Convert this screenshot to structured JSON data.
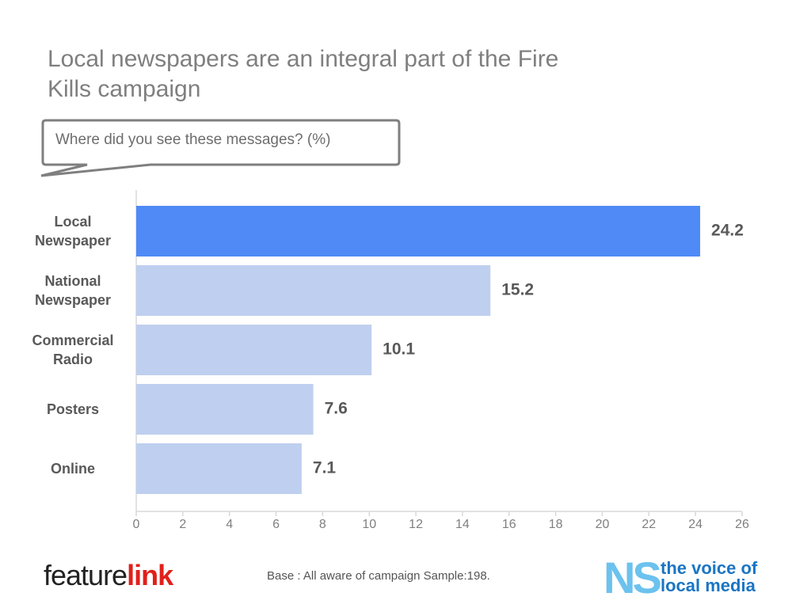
{
  "chart_data": {
    "type": "barh",
    "title": "Local newspapers are an integral part of the Fire Kills campaign",
    "subtitle": "Where did you see these messages? (%)",
    "categories": [
      "Local Newspaper",
      "National Newspaper",
      "Commercial Radio",
      "Posters",
      "Online"
    ],
    "values": [
      24.2,
      15.2,
      10.1,
      7.6,
      7.1
    ],
    "colors": [
      "#4f8af7",
      "#bfcfef",
      "#bfcfef",
      "#bfcfef",
      "#bfcfef"
    ],
    "xlim": [
      0,
      26
    ],
    "xticks": [
      0,
      2,
      4,
      6,
      8,
      10,
      12,
      14,
      16,
      18,
      20,
      22,
      24,
      26
    ],
    "grid": false,
    "footnote": "Base : All aware of campaign Sample:198."
  },
  "logo_left": {
    "part1": "feature",
    "part2": "link"
  },
  "logo_right": {
    "mark": "NS",
    "line1": "the voice of",
    "line2": "local media"
  }
}
